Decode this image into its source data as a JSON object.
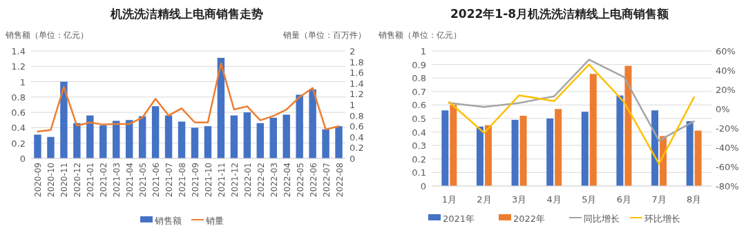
{
  "chart_data": [
    {
      "type": "bar",
      "title": "机洗洗洁精线上电商销售走势",
      "ylabel": "销售额（单位：亿元）",
      "y2label": "销量（单位：百万件）",
      "categories": [
        "2020-09",
        "2020-10",
        "2020-11",
        "2020-12",
        "2021-01",
        "2021-02",
        "2021-03",
        "2021-04",
        "2021-05",
        "2021-06",
        "2021-07",
        "2021-08",
        "2021-09",
        "2021-10",
        "2021-11",
        "2021-12",
        "2022-01",
        "2022-02",
        "2022-03",
        "2022-04",
        "2022-05",
        "2022-06",
        "2022-07",
        "2022-08"
      ],
      "series": [
        {
          "name": "销售额",
          "color": "#4472c4",
          "values": [
            0.31,
            0.28,
            1.0,
            0.46,
            0.56,
            0.43,
            0.49,
            0.5,
            0.55,
            0.68,
            0.56,
            0.48,
            0.4,
            0.42,
            1.31,
            0.56,
            0.6,
            0.46,
            0.53,
            0.57,
            0.83,
            0.9,
            0.38,
            0.42
          ]
        },
        {
          "name": "销量",
          "type": "line",
          "axis": "y2",
          "color": "#ed7d31",
          "values": [
            0.5,
            0.53,
            1.33,
            0.61,
            0.67,
            0.63,
            0.64,
            0.64,
            0.76,
            1.11,
            0.8,
            0.93,
            0.67,
            0.67,
            1.77,
            0.91,
            0.97,
            0.71,
            0.79,
            0.91,
            1.14,
            1.31,
            0.54,
            0.6
          ]
        }
      ],
      "ylim": [
        0,
        1.4
      ],
      "yticks": [
        0,
        0.2,
        0.4,
        0.6,
        0.8,
        1,
        1.2,
        1.4
      ],
      "y2lim": [
        0,
        2
      ],
      "y2ticks": [
        0,
        0.2,
        0.4,
        0.6,
        0.8,
        1,
        1.2,
        1.4,
        1.6,
        1.8,
        2
      ],
      "grid": "y",
      "legend": "bottom"
    },
    {
      "type": "bar",
      "title": "2022年1-8月机洗洗洁精线上电商销售额",
      "ylabel": "销售额（单位：亿元）",
      "categories": [
        "1月",
        "2月",
        "3月",
        "4月",
        "5月",
        "6月",
        "7月",
        "8月"
      ],
      "series": [
        {
          "name": "2021年",
          "color": "#4472c4",
          "values": [
            0.56,
            0.44,
            0.49,
            0.5,
            0.55,
            0.67,
            0.56,
            0.48
          ]
        },
        {
          "name": "2022年",
          "color": "#ed7d31",
          "values": [
            0.6,
            0.45,
            0.52,
            0.57,
            0.83,
            0.89,
            0.37,
            0.41
          ]
        },
        {
          "name": "同比增长",
          "type": "line",
          "axis": "y2",
          "color": "#a5a5a5",
          "values": [
            6,
            2,
            6,
            13,
            51,
            33,
            -33,
            -13
          ]
        },
        {
          "name": "环比增长",
          "type": "line",
          "axis": "y2",
          "color": "#ffc000",
          "values": [
            7,
            -25,
            14,
            8,
            46,
            7,
            -57,
            12
          ]
        }
      ],
      "ylim": [
        0,
        1
      ],
      "yticks": [
        0,
        0.1,
        0.2,
        0.3,
        0.4,
        0.5,
        0.6,
        0.7,
        0.8,
        0.9,
        1
      ],
      "y2lim": [
        -80,
        60
      ],
      "y2ticks": [
        {
          "value": -80,
          "label": "-80%"
        },
        {
          "value": -60,
          "label": "-60%"
        },
        {
          "value": -40,
          "label": "-40%"
        },
        {
          "value": -20,
          "label": "-20%"
        },
        {
          "value": 0,
          "label": "0%"
        },
        {
          "value": 20,
          "label": "20%"
        },
        {
          "value": 40,
          "label": "40%"
        },
        {
          "value": 60,
          "label": "60%"
        }
      ],
      "grid": "y",
      "legend": "bottom"
    }
  ]
}
